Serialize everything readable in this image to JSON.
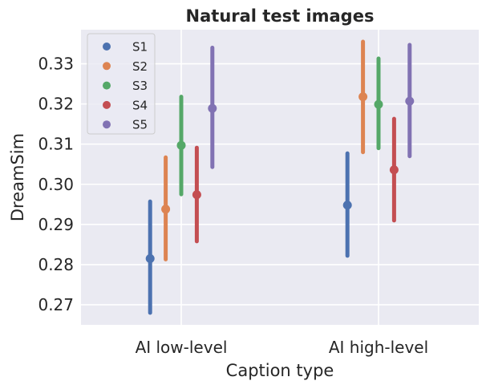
{
  "chart_data": {
    "type": "pointplot",
    "title": "Natural test images",
    "xlabel": "Caption type",
    "ylabel": "DreamSim",
    "categories": [
      "AI low-level",
      "AI high-level"
    ],
    "ylim": [
      0.265,
      0.3385
    ],
    "yticks": [
      0.27,
      0.28,
      0.29,
      0.3,
      0.31,
      0.32,
      0.33
    ],
    "ytick_labels": [
      "0.27",
      "0.28",
      "0.29",
      "0.30",
      "0.31",
      "0.32",
      "0.33"
    ],
    "grid": true,
    "legend_position": "top-left",
    "series": [
      {
        "name": "S1",
        "color": "#4c72b0",
        "values": [
          0.2815,
          0.2948
        ],
        "ci_low": [
          0.268,
          0.2822
        ],
        "ci_high": [
          0.2957,
          0.3077
        ]
      },
      {
        "name": "S2",
        "color": "#dd8452",
        "values": [
          0.2938,
          0.3218
        ],
        "ci_low": [
          0.2813,
          0.308
        ],
        "ci_high": [
          0.3067,
          0.3355
        ]
      },
      {
        "name": "S3",
        "color": "#55a868",
        "values": [
          0.3097,
          0.3199
        ],
        "ci_low": [
          0.2975,
          0.309
        ],
        "ci_high": [
          0.3218,
          0.3313
        ]
      },
      {
        "name": "S4",
        "color": "#c44e52",
        "values": [
          0.2974,
          0.3036
        ],
        "ci_low": [
          0.2858,
          0.291
        ],
        "ci_high": [
          0.3091,
          0.3163
        ]
      },
      {
        "name": "S5",
        "color": "#8172b3",
        "values": [
          0.3189,
          0.3207
        ],
        "ci_low": [
          0.3043,
          0.307
        ],
        "ci_high": [
          0.334,
          0.3347
        ]
      }
    ]
  }
}
